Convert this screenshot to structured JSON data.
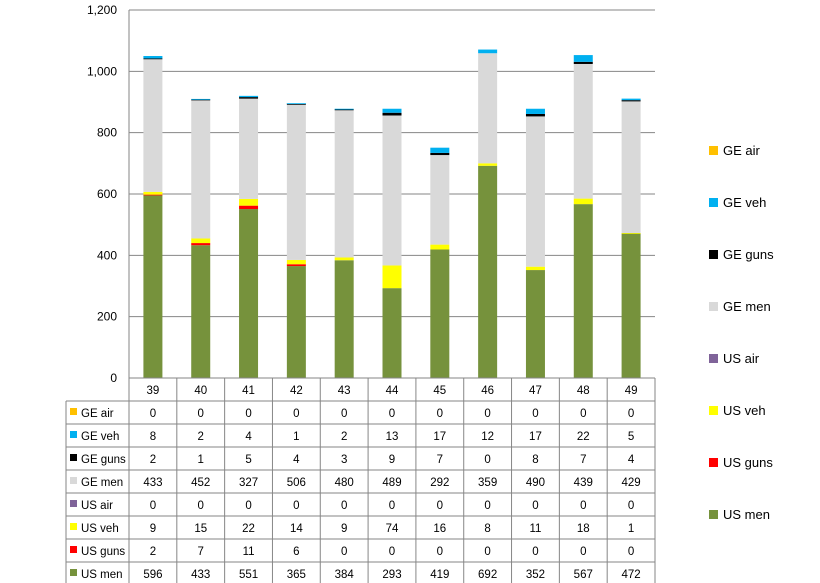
{
  "chart_data": {
    "type": "bar",
    "stacked": true,
    "title": "",
    "xlabel": "",
    "ylabel": "",
    "ylim": [
      0,
      1200
    ],
    "y_ticks": [
      "0",
      "200",
      "400",
      "600",
      "800",
      "1,000",
      "1,200"
    ],
    "y_tick_values": [
      0,
      200,
      400,
      600,
      800,
      1000,
      1200
    ],
    "grid": true,
    "legend": "right",
    "categories": [
      "39",
      "40",
      "41",
      "42",
      "43",
      "44",
      "45",
      "46",
      "47",
      "48",
      "49"
    ],
    "series": [
      {
        "name": "US men",
        "color": "#76923C",
        "values": [
          596,
          433,
          551,
          365,
          384,
          293,
          419,
          692,
          352,
          567,
          472
        ]
      },
      {
        "name": "US guns",
        "color": "#FF0000",
        "values": [
          2,
          7,
          11,
          6,
          0,
          0,
          0,
          0,
          0,
          0,
          0
        ]
      },
      {
        "name": "US veh",
        "color": "#FFFF00",
        "values": [
          9,
          15,
          22,
          14,
          9,
          74,
          16,
          8,
          11,
          18,
          1
        ]
      },
      {
        "name": "US air",
        "color": "#7F6399",
        "values": [
          0,
          0,
          0,
          0,
          0,
          0,
          0,
          0,
          0,
          0,
          0
        ]
      },
      {
        "name": "GE men",
        "color": "#D9D9D9",
        "values": [
          433,
          452,
          327,
          506,
          480,
          489,
          292,
          359,
          490,
          439,
          429
        ]
      },
      {
        "name": "GE guns",
        "color": "#000000",
        "values": [
          2,
          1,
          5,
          4,
          3,
          9,
          7,
          0,
          8,
          7,
          4
        ]
      },
      {
        "name": "GE veh",
        "color": "#00B0F0",
        "values": [
          8,
          2,
          4,
          1,
          2,
          13,
          17,
          12,
          17,
          22,
          5
        ]
      },
      {
        "name": "GE air",
        "color": "#FFC000",
        "values": [
          0,
          0,
          0,
          0,
          0,
          0,
          0,
          0,
          0,
          0,
          0
        ]
      }
    ],
    "table_row_order": [
      "GE air",
      "GE veh",
      "GE guns",
      "GE men",
      "US air",
      "US veh",
      "US guns",
      "US men"
    ],
    "legend_order": [
      "GE air",
      "GE veh",
      "GE guns",
      "GE men",
      "US air",
      "US veh",
      "US guns",
      "US men"
    ],
    "colors": {
      "grid": "#868686",
      "axis": "#868686"
    }
  }
}
